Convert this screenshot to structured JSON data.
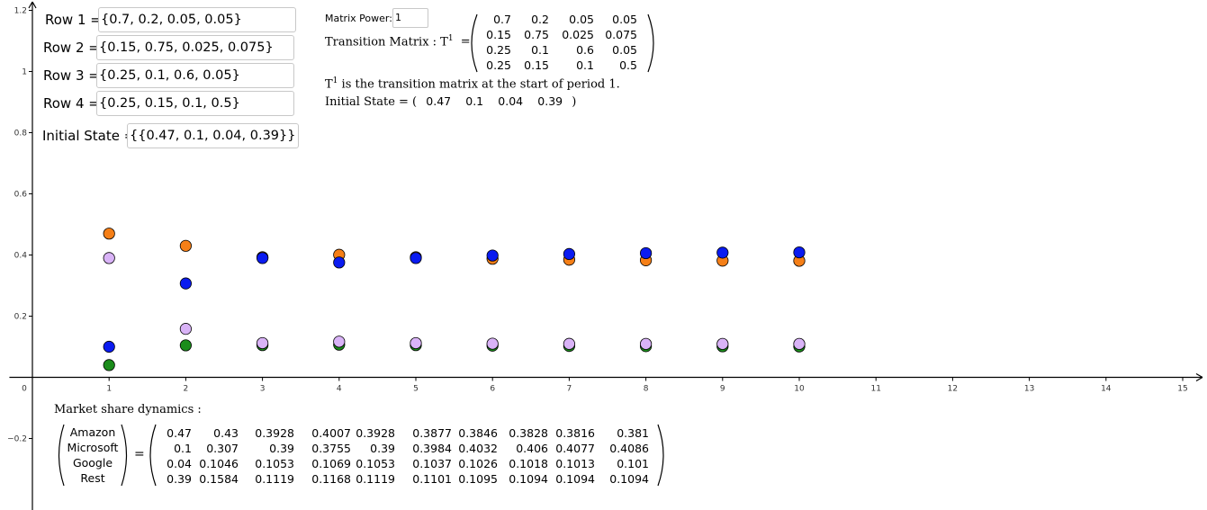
{
  "inputs": {
    "row1": {
      "label": "Row 1 =",
      "value": "{0.7, 0.2, 0.05, 0.05}"
    },
    "row2": {
      "label": "Row 2 =",
      "value": "{0.15, 0.75, 0.025, 0.075}"
    },
    "row3": {
      "label": "Row 3 =",
      "value": "{0.25, 0.1, 0.6, 0.05}"
    },
    "row4": {
      "label": "Row 4 =",
      "value": "{0.25, 0.15, 0.1, 0.5}"
    },
    "initial": {
      "label": "Initial State =",
      "value": "{{0.47, 0.1, 0.04, 0.39}}"
    }
  },
  "power": {
    "label": "Matrix Power:",
    "value": "1"
  },
  "transition": {
    "label": "Transition Matrix  : T",
    "sup": "1",
    "eq": "=",
    "rows": [
      [
        "0.7",
        "0.2",
        "0.05",
        "0.05"
      ],
      [
        "0.15",
        "0.75",
        "0.025",
        "0.075"
      ],
      [
        "0.25",
        "0.1",
        "0.6",
        "0.05"
      ],
      [
        "0.25",
        "0.15",
        "0.1",
        "0.5"
      ]
    ],
    "note_prefix": "T",
    "note_sup": "1",
    "note_text": " is the transition matrix at the start of period 1."
  },
  "initial_state": {
    "label": "Initial State = (",
    "values": [
      "0.47",
      "0.1",
      "0.04",
      "0.39"
    ],
    "close": ")"
  },
  "market": {
    "title": "Market share dynamics :",
    "labels": [
      "Amazon",
      "Microsoft",
      "Google",
      "Rest"
    ],
    "eq": "=",
    "rows": [
      [
        "0.47",
        "0.43",
        "0.3928",
        "0.4007",
        "0.3928",
        "0.3877",
        "0.3846",
        "0.3828",
        "0.3816",
        "0.381"
      ],
      [
        "0.1",
        "0.307",
        "0.39",
        "0.3755",
        "0.39",
        "0.3984",
        "0.4032",
        "0.406",
        "0.4077",
        "0.4086"
      ],
      [
        "0.04",
        "0.1046",
        "0.1053",
        "0.1069",
        "0.1053",
        "0.1037",
        "0.1026",
        "0.1018",
        "0.1013",
        "0.101"
      ],
      [
        "0.39",
        "0.1584",
        "0.1119",
        "0.1168",
        "0.1119",
        "0.1101",
        "0.1095",
        "0.1094",
        "0.1094",
        "0.1094"
      ]
    ]
  },
  "chart_data": {
    "type": "scatter",
    "title": "",
    "xlabel": "",
    "ylabel": "",
    "xlim": [
      -0.3,
      15.4
    ],
    "ylim": [
      -0.42,
      1.22
    ],
    "x_ticks": [
      0,
      1,
      2,
      3,
      4,
      5,
      6,
      7,
      8,
      9,
      10,
      11,
      12,
      13,
      14,
      15
    ],
    "x_tick_labels": [
      "0",
      "1",
      "2",
      "3",
      "4",
      "5",
      "6",
      "7",
      "8",
      "9",
      "10",
      "11",
      "12",
      "13",
      "14",
      "15"
    ],
    "y_ticks": [
      -0.2,
      0.2,
      0.4,
      0.6,
      0.8,
      1,
      1.2
    ],
    "y_tick_labels": [
      "−0.2",
      "0.2",
      "0.4",
      "0.6",
      "0.8",
      "1",
      "1.2"
    ],
    "x": [
      1,
      2,
      3,
      4,
      5,
      6,
      7,
      8,
      9,
      10
    ],
    "series": [
      {
        "name": "Amazon",
        "color": "#F57F17",
        "values": [
          0.47,
          0.43,
          0.3928,
          0.4007,
          0.3928,
          0.3877,
          0.3846,
          0.3828,
          0.3816,
          0.381
        ]
      },
      {
        "name": "Google",
        "color": "#1B8C1B",
        "values": [
          0.04,
          0.1046,
          0.1053,
          0.1069,
          0.1053,
          0.1037,
          0.1026,
          0.1018,
          0.1013,
          0.101
        ]
      },
      {
        "name": "Rest",
        "color": "#D9B3F7",
        "values": [
          0.39,
          0.1584,
          0.1119,
          0.1168,
          0.1119,
          0.1101,
          0.1095,
          0.1094,
          0.1094,
          0.1094
        ]
      },
      {
        "name": "Microsoft",
        "color": "#0A1BF0",
        "values": [
          0.1,
          0.307,
          0.39,
          0.3755,
          0.39,
          0.3984,
          0.4032,
          0.406,
          0.4077,
          0.4086
        ]
      }
    ]
  }
}
